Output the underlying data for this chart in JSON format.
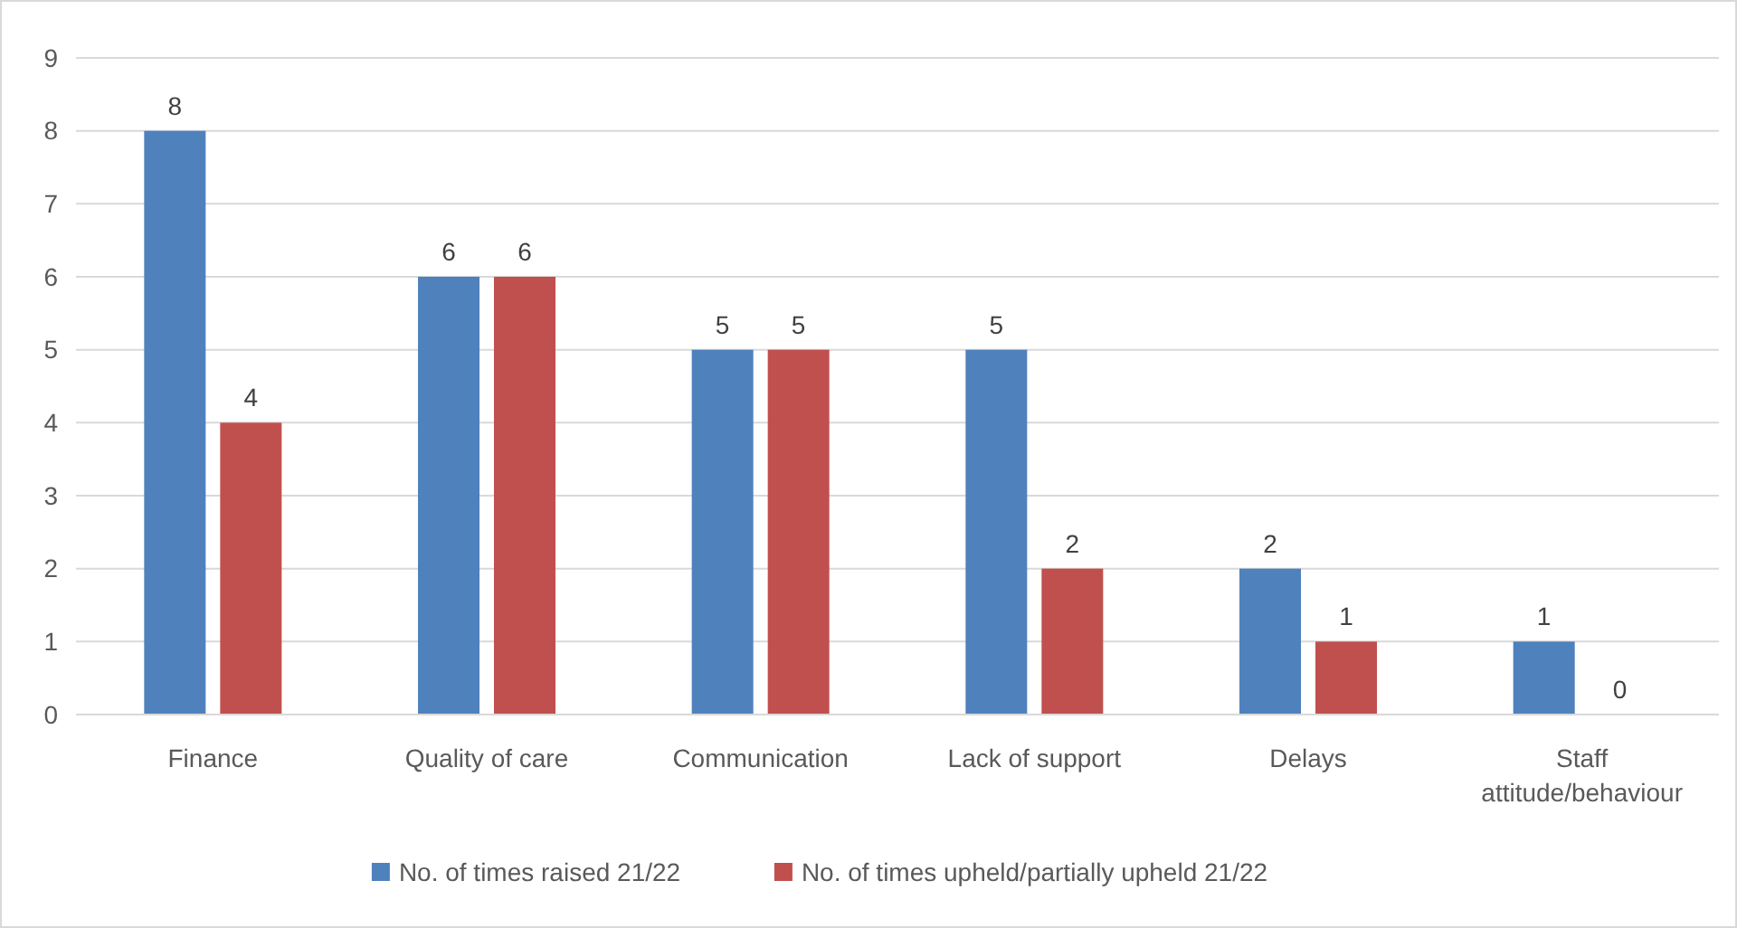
{
  "chart_data": {
    "type": "bar",
    "categories": [
      "Finance",
      "Quality of care",
      "Communication",
      "Lack of support",
      "Delays",
      "Staff attitude/behaviour"
    ],
    "series": [
      {
        "name": "No. of times raised 21/22",
        "color": "#4f81bd",
        "values": [
          8,
          6,
          5,
          5,
          2,
          1
        ]
      },
      {
        "name": "No. of times upheld/partially upheld 21/22",
        "color": "#c0504d",
        "values": [
          4,
          6,
          5,
          2,
          1,
          0
        ]
      }
    ],
    "ylim": [
      0,
      9
    ],
    "yticks": [
      0,
      1,
      2,
      3,
      4,
      5,
      6,
      7,
      8,
      9
    ],
    "grid": "y",
    "legend": "bottom",
    "data_labels": true
  }
}
